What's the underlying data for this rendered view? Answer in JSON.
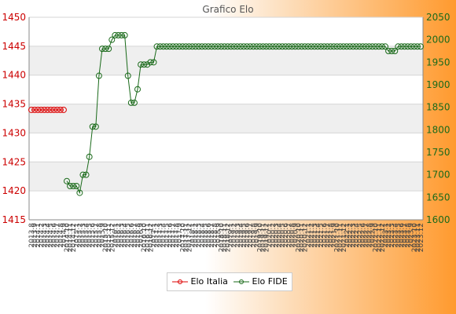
{
  "chart_data": {
    "type": "line",
    "title": "Grafico Elo",
    "y_left": {
      "ticks": [
        1415,
        1420,
        1425,
        1430,
        1435,
        1440,
        1445,
        1450
      ],
      "range": [
        1415,
        1450
      ]
    },
    "y_right": {
      "ticks": [
        1600,
        1650,
        1700,
        1750,
        1800,
        1850,
        1900,
        1950,
        2000,
        2050
      ],
      "range": [
        1600,
        2050
      ]
    },
    "x_labels": [
      "2013.8",
      "2013.9",
      "2014.1",
      "2014.2",
      "2014.3",
      "2014.4",
      "2014.5",
      "2014.6",
      "2014.7",
      "2014.8",
      "2014.9",
      "2014.10",
      "2014.11",
      "2014.12",
      "2015.1",
      "2015.2",
      "2015.3",
      "2015.4",
      "2015.5",
      "2015.6",
      "2015.7",
      "2015.8",
      "2015.9",
      "2015.10",
      "2015.11",
      "2015.12",
      "2016.1",
      "2016.2",
      "2016.3",
      "2016.4",
      "2016.5",
      "2016.6",
      "2016.7",
      "2016.8",
      "2016.9",
      "2016.10",
      "2016.11",
      "2016.12",
      "2017.1",
      "2017.2",
      "2017.3",
      "2017.4",
      "2017.5",
      "2017.6",
      "2017.7",
      "2017.8",
      "2017.9",
      "2017.10",
      "2017.11",
      "2017.12",
      "2018.1",
      "2018.2",
      "2018.3",
      "2018.4",
      "2018.5",
      "2018.6",
      "2018.7",
      "2018.8",
      "2018.9",
      "2018.10",
      "2018.11",
      "2018.12",
      "2019.1",
      "2019.2",
      "2019.3",
      "2019.4",
      "2019.5",
      "2019.6",
      "2019.7",
      "2019.8",
      "2019.9",
      "2019.10",
      "2019.11",
      "2019.12",
      "2020.1",
      "2020.2",
      "2020.3",
      "2020.4",
      "2020.5",
      "2020.6",
      "2020.7",
      "2020.8",
      "2020.9",
      "2020.10",
      "2020.11",
      "2020.12",
      "2021.1",
      "2021.2",
      "2021.3",
      "2021.4",
      "2021.5",
      "2021.6",
      "2021.7",
      "2021.8",
      "2021.9",
      "2021.10",
      "2021.11",
      "2021.12",
      "2022.1",
      "2022.2",
      "2022.3",
      "2022.4",
      "2022.5",
      "2022.6",
      "2022.7",
      "2022.8",
      "2022.9",
      "2022.10",
      "2022.11",
      "2022.12",
      "2023.1",
      "2023.2",
      "2023.3",
      "2023.4",
      "2023.5",
      "2023.6",
      "2023.7",
      "2023.8",
      "2023.9",
      "2023.10",
      "2023.11",
      "2023.12"
    ],
    "series": [
      {
        "name": "Elo Italia",
        "axis": "left",
        "color": "#dd0000",
        "values": [
          1434,
          1434,
          1434,
          1434,
          1434,
          1434,
          1434,
          1434,
          1434,
          1434,
          1434
        ]
      },
      {
        "name": "Elo FIDE",
        "axis": "right",
        "color": "#1a6a1a",
        "values": [
          null,
          null,
          null,
          null,
          null,
          null,
          null,
          null,
          null,
          null,
          null,
          1686,
          1675,
          1675,
          1675,
          1660,
          1700,
          1700,
          1740,
          1807,
          1807,
          1920,
          1980,
          1980,
          1980,
          2000,
          2010,
          2010,
          2010,
          2010,
          1920,
          1860,
          1860,
          1890,
          1945,
          1945,
          1945,
          1950,
          1950,
          1985,
          1985,
          1985,
          1985,
          1985,
          1985,
          1985,
          1985,
          1985,
          1985,
          1985,
          1985,
          1985,
          1985,
          1985,
          1985,
          1985,
          1985,
          1985,
          1985,
          1985,
          1985,
          1985,
          1985,
          1985,
          1985,
          1985,
          1985,
          1985,
          1985,
          1985,
          1985,
          1985,
          1985,
          1985,
          1985,
          1985,
          1985,
          1985,
          1985,
          1985,
          1985,
          1985,
          1985,
          1985,
          1985,
          1985,
          1985,
          1985,
          1985,
          1985,
          1985,
          1985,
          1985,
          1985,
          1985,
          1985,
          1985,
          1985,
          1985,
          1985,
          1985,
          1985,
          1985,
          1985,
          1985,
          1985,
          1985,
          1985,
          1985,
          1985,
          1985,
          1975,
          1975,
          1975,
          1985,
          1985,
          1985,
          1985,
          1985,
          1985,
          1985,
          1985
        ]
      }
    ],
    "legend": [
      "Elo Italia",
      "Elo FIDE"
    ],
    "legend_position": "bottom",
    "grid": true
  }
}
